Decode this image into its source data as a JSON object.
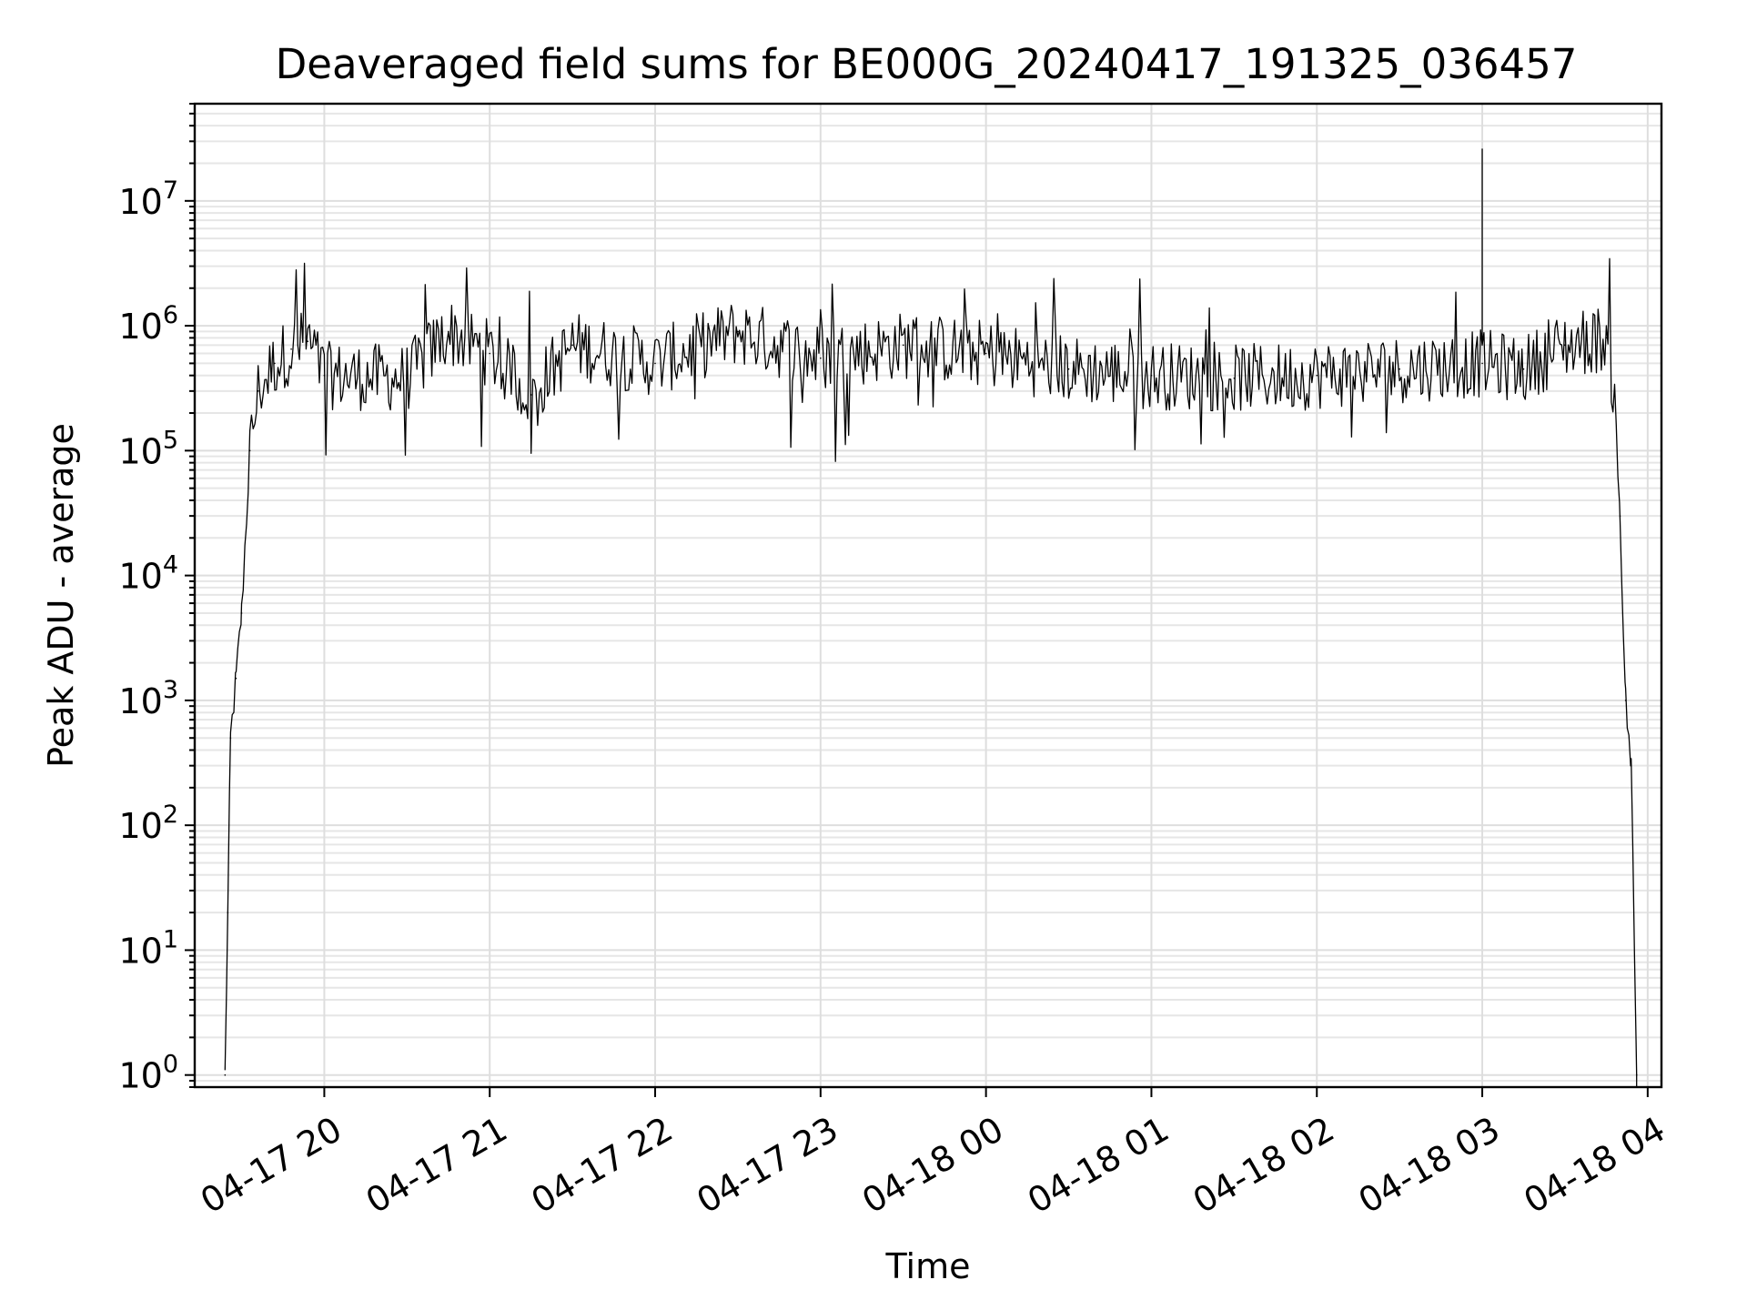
{
  "chart_data": {
    "type": "line",
    "title": "Deaveraged field sums for BE000G_20240417_191325_036457",
    "xlabel": "Time",
    "ylabel": "Peak ADU - average",
    "yscale": "log",
    "grid": true,
    "xlim": [
      "2024-04-17 19:13",
      "2024-04-18 04:05"
    ],
    "ylim": [
      0.8,
      60000000
    ],
    "x_ticks": [
      {
        "t": "2024-04-17 20:00",
        "label": "04-17 20"
      },
      {
        "t": "2024-04-17 21:00",
        "label": "04-17 21"
      },
      {
        "t": "2024-04-17 22:00",
        "label": "04-17 22"
      },
      {
        "t": "2024-04-17 23:00",
        "label": "04-17 23"
      },
      {
        "t": "2024-04-18 00:00",
        "label": "04-18 00"
      },
      {
        "t": "2024-04-18 01:00",
        "label": "04-18 01"
      },
      {
        "t": "2024-04-18 02:00",
        "label": "04-18 02"
      },
      {
        "t": "2024-04-18 03:00",
        "label": "04-18 03"
      },
      {
        "t": "2024-04-18 04:00",
        "label": "04-18 04"
      }
    ],
    "y_ticks": [
      {
        "value": 1,
        "base": "10",
        "exp": "0"
      },
      {
        "value": 10,
        "base": "10",
        "exp": "1"
      },
      {
        "value": 100,
        "base": "10",
        "exp": "2"
      },
      {
        "value": 1000,
        "base": "10",
        "exp": "3"
      },
      {
        "value": 10000,
        "base": "10",
        "exp": "4"
      },
      {
        "value": 100000,
        "base": "10",
        "exp": "5"
      },
      {
        "value": 1000000,
        "base": "10",
        "exp": "6"
      },
      {
        "value": 10000000,
        "base": "10",
        "exp": "7"
      }
    ],
    "series": [
      {
        "color": "#000000",
        "points": [
          [
            "2024-04-17 19:24",
            1
          ],
          [
            "2024-04-17 19:25",
            20
          ],
          [
            "2024-04-17 19:26",
            500
          ],
          [
            "2024-04-17 19:28",
            1500
          ],
          [
            "2024-04-17 19:30",
            5000
          ],
          [
            "2024-04-17 19:33",
            100000
          ],
          [
            "2024-04-17 19:36",
            300000
          ],
          [
            "2024-04-17 19:42",
            500000
          ],
          [
            "2024-04-17 19:48",
            650000
          ],
          [
            "2024-04-17 19:54",
            750000
          ],
          [
            "2024-04-17 20:00",
            400000
          ],
          [
            "2024-04-17 20:30",
            380000
          ],
          [
            "2024-04-17 20:45",
            900000
          ],
          [
            "2024-04-17 21:00",
            600000
          ],
          [
            "2024-04-17 21:15",
            280000
          ],
          [
            "2024-04-17 21:30",
            700000
          ],
          [
            "2024-04-17 22:00",
            500000
          ],
          [
            "2024-04-17 22:30",
            900000
          ],
          [
            "2024-04-17 23:00",
            550000
          ],
          [
            "2024-04-17 23:30",
            700000
          ],
          [
            "2024-04-18 00:00",
            600000
          ],
          [
            "2024-04-18 00:30",
            450000
          ],
          [
            "2024-04-18 01:00",
            400000
          ],
          [
            "2024-04-18 01:30",
            380000
          ],
          [
            "2024-04-18 02:00",
            400000
          ],
          [
            "2024-04-18 02:30",
            450000
          ],
          [
            "2024-04-18 03:00",
            500000
          ],
          [
            "2024-04-18 03:15",
            450000
          ],
          [
            "2024-04-18 03:30",
            700000
          ],
          [
            "2024-04-18 03:45",
            800000
          ],
          [
            "2024-04-18 03:48",
            300000
          ],
          [
            "2024-04-18 03:50",
            30000
          ],
          [
            "2024-04-18 03:52",
            1000
          ],
          [
            "2024-04-18 03:54",
            300
          ],
          [
            "2024-04-18 03:56",
            1
          ]
        ],
        "peak": {
          "t": "2024-04-18 03:00",
          "value": 26000000
        }
      }
    ]
  }
}
